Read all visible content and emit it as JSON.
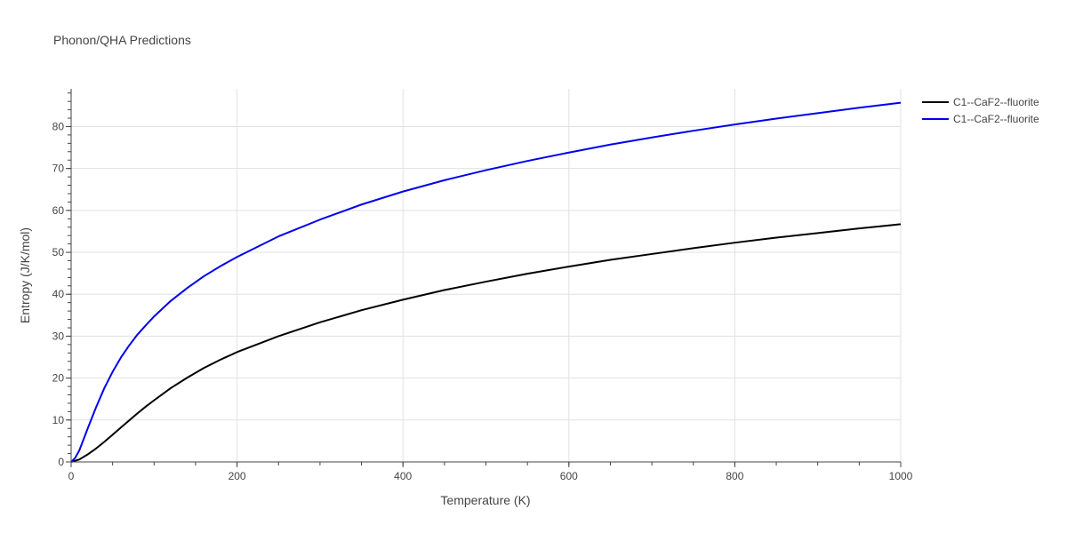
{
  "chart_data": {
    "type": "line",
    "title": "Phonon/QHA Predictions",
    "xlabel": "Temperature (K)",
    "ylabel": "Entropy (J/K/mol)",
    "xlim": [
      0,
      1000
    ],
    "ylim": [
      0,
      89
    ],
    "x_ticks": [
      0,
      200,
      400,
      600,
      800,
      1000
    ],
    "y_ticks": [
      0,
      10,
      20,
      30,
      40,
      50,
      60,
      70,
      80
    ],
    "grid": true,
    "legend_position": "top-right",
    "series": [
      {
        "name": "C1--CaF2--fluorite",
        "color": "#000000",
        "x": [
          0,
          10,
          20,
          30,
          40,
          50,
          60,
          70,
          80,
          90,
          100,
          120,
          140,
          160,
          180,
          200,
          250,
          300,
          350,
          400,
          450,
          500,
          550,
          600,
          650,
          700,
          750,
          800,
          850,
          900,
          950,
          1000
        ],
        "y": [
          0,
          0.6,
          1.8,
          3.2,
          4.8,
          6.5,
          8.2,
          9.9,
          11.6,
          13.2,
          14.7,
          17.6,
          20.1,
          22.4,
          24.4,
          26.2,
          30.0,
          33.3,
          36.2,
          38.7,
          41.0,
          43.0,
          44.9,
          46.6,
          48.2,
          49.6,
          51.0,
          52.3,
          53.5,
          54.6,
          55.7,
          56.7
        ]
      },
      {
        "name": "C1--CaF2--fluorite",
        "color": "#0000ee",
        "x": [
          0,
          5,
          10,
          20,
          30,
          40,
          50,
          60,
          70,
          80,
          90,
          100,
          120,
          140,
          160,
          180,
          200,
          250,
          300,
          350,
          400,
          450,
          500,
          550,
          600,
          650,
          700,
          750,
          800,
          850,
          900,
          950,
          1000
        ],
        "y": [
          0,
          1.0,
          2.8,
          8.0,
          13.0,
          17.6,
          21.5,
          24.9,
          27.8,
          30.4,
          32.6,
          34.7,
          38.4,
          41.5,
          44.3,
          46.7,
          48.9,
          53.8,
          57.8,
          61.4,
          64.5,
          67.2,
          69.6,
          71.8,
          73.8,
          75.7,
          77.4,
          79.0,
          80.5,
          81.9,
          83.2,
          84.5,
          85.7
        ]
      }
    ]
  }
}
